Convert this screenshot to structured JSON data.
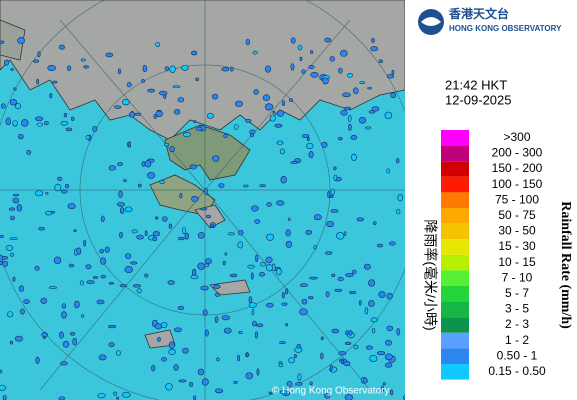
{
  "header": {
    "logo_chinese": "香港天文台",
    "logo_english": "HONG KONG OBSERVATORY"
  },
  "timestamp": {
    "time": "21:42 HKT",
    "date": "12-09-2025"
  },
  "legend": {
    "title_chinese": "降雨率(毫米/小時)",
    "title_english": "Rainfall Rate (mm/h)",
    "items": [
      {
        "label": ">300",
        "color": "#ff00ff"
      },
      {
        "label": "200 - 300",
        "color": "#c0007a"
      },
      {
        "label": "150 - 200",
        "color": "#d40000"
      },
      {
        "label": "100 - 150",
        "color": "#ff1a00"
      },
      {
        "label": "75 - 100",
        "color": "#ff7a00"
      },
      {
        "label": "50 - 75",
        "color": "#ffa800"
      },
      {
        "label": "30 - 50",
        "color": "#f5c400"
      },
      {
        "label": "15 - 30",
        "color": "#e6e600"
      },
      {
        "label": "10 - 15",
        "color": "#b6f000"
      },
      {
        "label": "7 - 10",
        "color": "#55f033"
      },
      {
        "label": "5 - 7",
        "color": "#22d63a"
      },
      {
        "label": "3 - 5",
        "color": "#16b646"
      },
      {
        "label": "2 - 3",
        "color": "#0b944a"
      },
      {
        "label": "1 - 2",
        "color": "#5aa0ff"
      },
      {
        "label": "0.50 - 1",
        "color": "#2c86f0"
      },
      {
        "label": "0.15 - 0.50",
        "color": "#12c8ff"
      }
    ]
  },
  "credit": "© Hong Kong Observatory"
}
